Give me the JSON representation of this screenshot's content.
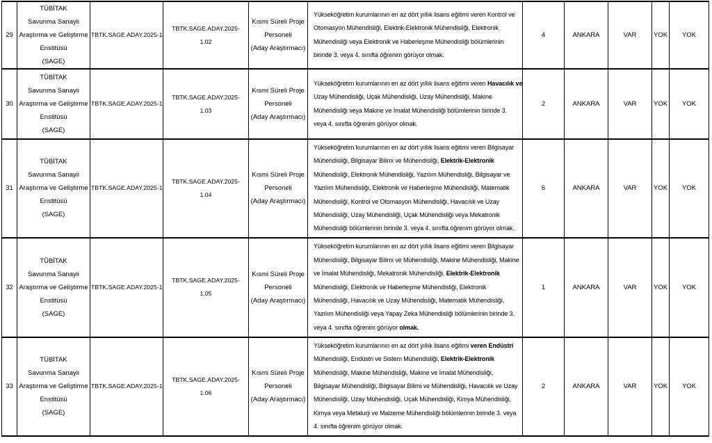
{
  "document": {
    "type": "job-announcement-table",
    "language": "tr",
    "text_color": "#000000",
    "border_color": "#000000",
    "background_color": "#ffffff"
  },
  "table": {
    "rows": [
      {
        "no": "29",
        "institution_lines": [
          "TÜBİTAK",
          "Savunma Sanayii",
          "Araştırma ve Geliştirme",
          "Enstitüsü",
          "(SAGE)"
        ],
        "announcement_code": "TBTK.SAGE.ADAY.2025-1",
        "reference_lines": [
          "TBTK.SAGE.ADAY.2025-",
          "1.02"
        ],
        "position_lines": [
          "Kısmi Süreli Proje",
          "Personeli",
          "(Aday Araştırmacı)"
        ],
        "requirement_lines": [
          "Yükseköğretim kurumlarının en az dört yıllık lisans eğitimi veren Kontrol ve",
          "Otomasyon Mühendisliği, Elektrik-Elektronik Mühendisliği, Elektronik",
          "Mühendisliği veya Elektronik ve Haberleşme Mühendisliği bölümlerinin",
          "birinde 3. veya 4. sınıfta öğrenim görüyor olmak."
        ],
        "bold_phrases": [],
        "quota": "4",
        "city": "ANKARA",
        "flags": [
          "VAR",
          "YOK",
          "YOK"
        ]
      },
      {
        "no": "30",
        "institution_lines": [
          "TÜBİTAK",
          "Savunma Sanayii",
          "Araştırma ve Geliştirme",
          "Enstitüsü",
          "(SAGE)"
        ],
        "announcement_code": "TBTK.SAGE.ADAY.2025-1",
        "reference_lines": [
          "TBTK.SAGE.ADAY.2025-",
          "1.03"
        ],
        "position_lines": [
          "Kısmi Süreli Proje",
          "Personeli",
          "(Aday Araştırmacı)"
        ],
        "requirement_lines": [
          "Yükseköğretim kurumlarının en az dört yıllık lisans eğitimi veren Havacılık ve",
          "Uzay Mühendisliği, Uçak Mühendisliği, Uzay Mühendisliği, Makine",
          "Mühendisliği veya Makine ve İmalat Mühendisliği bölümlerinin birinde 3.",
          "veya 4. sınıfta öğrenim görüyor olmak."
        ],
        "bold_phrases": [
          "Havacılık ve"
        ],
        "quota": "2",
        "city": "ANKARA",
        "flags": [
          "VAR",
          "YOK",
          "YOK"
        ]
      },
      {
        "no": "31",
        "institution_lines": [
          "TÜBİTAK",
          "Savunma Sanayii",
          "Araştırma ve Geliştirme",
          "Enstitüsü",
          "(SAGE)"
        ],
        "announcement_code": "TBTK.SAGE.ADAY.2025-1",
        "reference_lines": [
          "TBTK.SAGE.ADAY.2025-",
          "1.04"
        ],
        "position_lines": [
          "Kısmi Süreli Proje",
          "Personeli",
          "(Aday Araştırmacı)"
        ],
        "requirement_lines": [
          "Yükseköğretim kurumlarının en az dört yıllık lisans eğitimi veren Bilgisayar",
          "Mühendisliği, Bilgisayar Bilimi ve Mühendisliği, Elektrik-Elektronik",
          "Mühendisliği, Elektronik Mühendisliği, Yazılım Mühendisliği, Bilgisayar ve",
          "Yazılım Mühendisliği, Elektronik ve Haberleşme Mühendisliği, Matematik",
          "Mühendisliği, Kontrol ve Otomasyon Mühendisliği, Havacılık ve Uzay",
          "Mühendisliği, Uzay Mühendisliği, Uçak Mühendisliği veya Mekatronik",
          "Mühendisliği bölümlerinin birinde 3. veya 4. sınıfta öğrenim görüyor olmak."
        ],
        "bold_phrases": [
          "Elektrik-Elektronik"
        ],
        "quota": "6",
        "city": "ANKARA",
        "flags": [
          "VAR",
          "YOK",
          "YOK"
        ]
      },
      {
        "no": "32",
        "institution_lines": [
          "TÜBİTAK",
          "Savunma Sanayii",
          "Araştırma ve Geliştirme",
          "Enstitüsü",
          "(SAGE)"
        ],
        "announcement_code": "TBTK.SAGE.ADAY.2025-1",
        "reference_lines": [
          "TBTK.SAGE.ADAY.2025-",
          "1.05"
        ],
        "position_lines": [
          "Kısmi Süreli Proje",
          "Personeli",
          "(Aday Araştırmacı)"
        ],
        "requirement_lines": [
          "Yükseköğretim kurumlarının en az dört yıllık lisans eğitimi veren Bilgisayar",
          "Mühendisliği, Bilgisayar Bilimi ve Mühendisliği, Makine Mühendisliği, Makine",
          "ve İmalat Mühendisliği, Mekatronik Mühendisliği, Elektrik-Elektronik",
          "Mühendisliği, Elektronik ve Haberleşme Mühendisliği, Elektronik",
          "Mühendisliği, Havacılık ve Uzay Mühendisliği, Matematik Mühendisliği,",
          "Yazılım Mühendisliği veya Yapay Zeka Mühendisliği bölümlerinin birinde 3.",
          "veya 4. sınıfta öğrenim görüyor olmak."
        ],
        "bold_phrases": [
          "Elektrik-Elektronik",
          "olmak."
        ],
        "quota": "1",
        "city": "ANKARA",
        "flags": [
          "VAR",
          "YOK",
          "YOK"
        ]
      },
      {
        "no": "33",
        "institution_lines": [
          "TÜBİTAK",
          "Savunma Sanayii",
          "Araştırma ve Geliştirme",
          "Enstitüsü",
          "(SAGE)"
        ],
        "announcement_code": "TBTK.SAGE.ADAY.2025-1",
        "reference_lines": [
          "TBTK.SAGE.ADAY.2025-",
          "1.06"
        ],
        "position_lines": [
          "Kısmi Süreli Proje",
          "Personeli",
          "(Aday Araştırmacı)"
        ],
        "requirement_lines": [
          "Yükseköğretim kurumlarının en az dört yıllık lisans eğitimi veren Endüstri",
          "Mühendisliği, Endüstri ve Sistem Mühendisliği, Elektrik-Elektronik",
          "Mühendisliği, Makine Mühendisliği, Makine ve İmalat Mühendisliği,",
          "Bilgisayar Mühendisliği, Bilgisayar Bilimi ve Mühendisliği, Havacılık ve Uzay",
          "Mühendisliği, Uzay Mühendisliği, Uçak Mühendisliği, Kimya Mühendisliği,",
          "Kimya veya Metalurji ve Malzeme Mühendisliği bölümlerinin birinde 3. veya",
          "4. sınıfta öğrenim görüyor olmak."
        ],
        "bold_phrases": [
          "veren Endüstri",
          "Elektrik-Elektronik"
        ],
        "quota": "2",
        "city": "ANKARA",
        "flags": [
          "VAR",
          "YOK",
          "YOK"
        ]
      }
    ]
  }
}
